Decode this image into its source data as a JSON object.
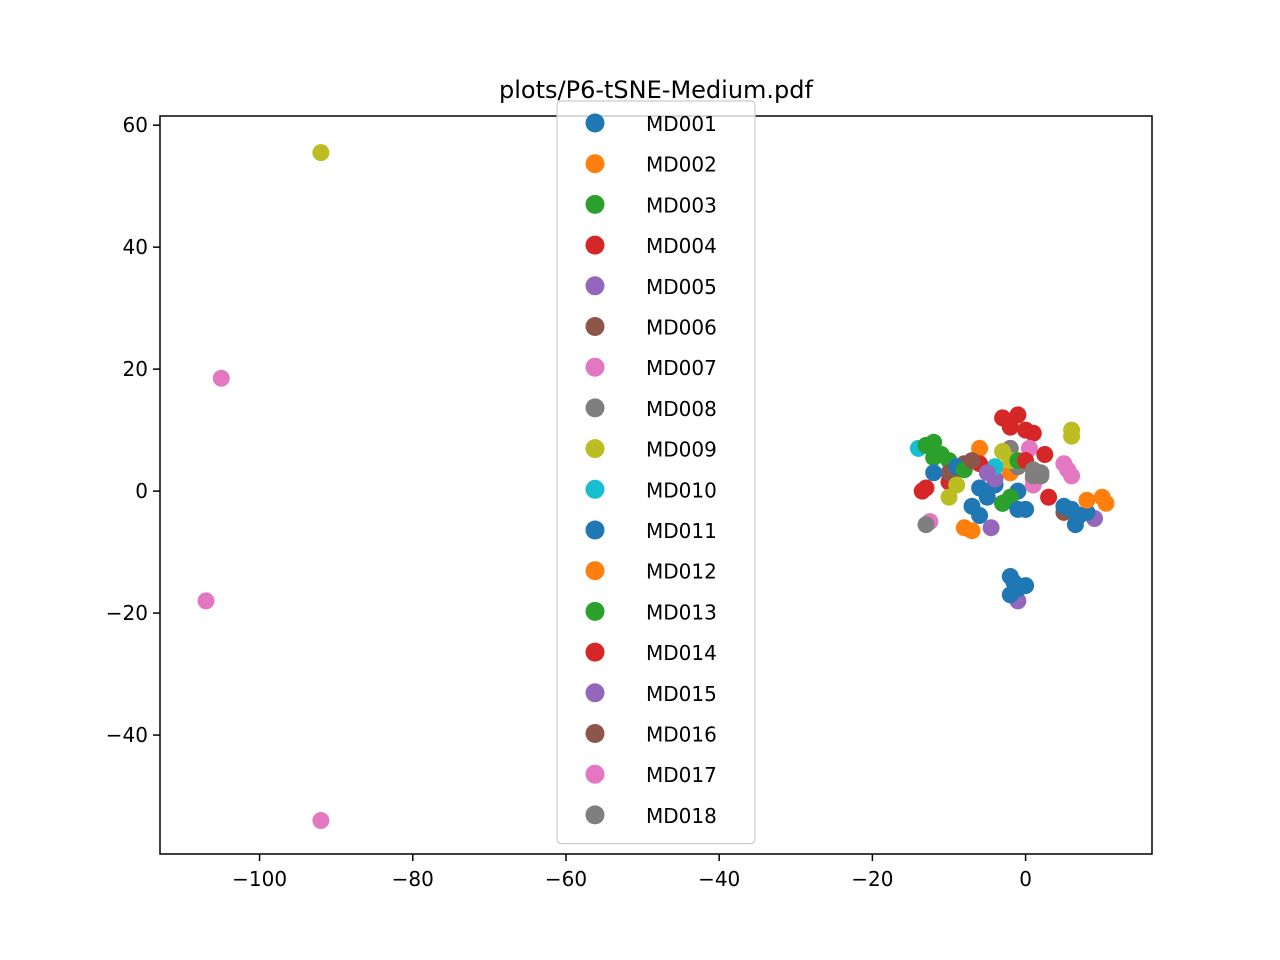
{
  "chart_data": {
    "type": "scatter",
    "title": "plots/P6-tSNE-Medium.pdf",
    "xlabel": "",
    "ylabel": "",
    "xlim": [
      -113,
      16.5
    ],
    "ylim": [
      -59.5,
      61.5
    ],
    "xticks": [
      -100,
      -80,
      -60,
      -40,
      -20,
      0
    ],
    "xtick_labels": [
      "−100",
      "−80",
      "−60",
      "−40",
      "−20",
      "0"
    ],
    "yticks": [
      -40,
      -20,
      0,
      20,
      40,
      60
    ],
    "ytick_labels": [
      "−40",
      "−20",
      "0",
      "20",
      "40",
      "60"
    ],
    "grid": false,
    "legend_position": "upper center",
    "series": [
      {
        "name": "MD001",
        "color": "#1f77b4",
        "points": [
          [
            -6,
            0.5
          ],
          [
            -5,
            -1
          ],
          [
            -4,
            1
          ],
          [
            -3,
            -2
          ],
          [
            -1,
            0
          ],
          [
            0,
            -3
          ],
          [
            -7,
            -2.5
          ],
          [
            -6,
            -4
          ]
        ]
      },
      {
        "name": "MD002",
        "color": "#ff7f0e",
        "points": [
          [
            -6,
            7
          ],
          [
            -2,
            3
          ],
          [
            -8,
            -6
          ],
          [
            -7,
            -6.5
          ],
          [
            1,
            2
          ]
        ]
      },
      {
        "name": "MD003",
        "color": "#2ca02c",
        "points": [
          [
            -12,
            8
          ],
          [
            -11,
            6
          ],
          [
            -10,
            5
          ],
          [
            -12,
            5.5
          ],
          [
            -3,
            -2
          ],
          [
            -2,
            -1
          ]
        ]
      },
      {
        "name": "MD004",
        "color": "#d62728",
        "points": [
          [
            -3,
            12
          ],
          [
            -1,
            12.5
          ],
          [
            0,
            10
          ],
          [
            1,
            9.5
          ],
          [
            -2,
            10.5
          ],
          [
            -9,
            3.5
          ],
          [
            -10,
            1.5
          ]
        ]
      },
      {
        "name": "MD005",
        "color": "#9467bd",
        "points": [
          [
            -4,
            2
          ],
          [
            -4.5,
            -6
          ],
          [
            9,
            -4.5
          ],
          [
            -1,
            -18
          ]
        ]
      },
      {
        "name": "MD006",
        "color": "#8c564b",
        "points": [
          [
            -8,
            4.5
          ],
          [
            -10,
            3
          ],
          [
            5,
            -3.5
          ]
        ]
      },
      {
        "name": "MD007",
        "color": "#e377c2",
        "points": [
          [
            -92,
            -54
          ],
          [
            0.5,
            7
          ],
          [
            1,
            1
          ],
          [
            -12.5,
            -5
          ]
        ]
      },
      {
        "name": "MD008",
        "color": "#7f7f7f",
        "points": [
          [
            -2,
            7
          ],
          [
            2,
            3
          ],
          [
            -1,
            4
          ],
          [
            1,
            2.5
          ],
          [
            -13,
            -5.5
          ]
        ]
      },
      {
        "name": "MD009",
        "color": "#bcbd22",
        "points": [
          [
            -92,
            55.5
          ],
          [
            6,
            10
          ],
          [
            6,
            9
          ],
          [
            -3,
            6.5
          ],
          [
            -2,
            5
          ],
          [
            -9,
            1
          ],
          [
            -10,
            -1
          ]
        ]
      },
      {
        "name": "MD010",
        "color": "#17becf",
        "points": [
          [
            -14,
            7
          ],
          [
            -4,
            4
          ]
        ]
      },
      {
        "name": "MD011",
        "color": "#1f77b4",
        "points": [
          [
            -2,
            -14
          ],
          [
            -1,
            -16
          ],
          [
            -2,
            -17
          ],
          [
            0,
            -15.5
          ],
          [
            -1.5,
            -15
          ],
          [
            5,
            -2.5
          ],
          [
            6,
            -3
          ],
          [
            7,
            -4
          ],
          [
            8,
            -3.5
          ],
          [
            6.5,
            -5.5
          ],
          [
            -12,
            3
          ],
          [
            -9,
            4
          ],
          [
            -1,
            -3
          ]
        ]
      },
      {
        "name": "MD012",
        "color": "#ff7f0e",
        "points": [
          [
            10,
            -1
          ],
          [
            10.5,
            -2
          ],
          [
            8,
            -1.5
          ]
        ]
      },
      {
        "name": "MD013",
        "color": "#2ca02c",
        "points": [
          [
            -13,
            7.5
          ],
          [
            -8,
            3.5
          ],
          [
            -1,
            5
          ]
        ]
      },
      {
        "name": "MD014",
        "color": "#d62728",
        "points": [
          [
            -13,
            0.5
          ],
          [
            -13.5,
            0
          ],
          [
            2.5,
            6
          ],
          [
            0,
            5
          ],
          [
            3,
            -1
          ],
          [
            -6,
            4.5
          ]
        ]
      },
      {
        "name": "MD015",
        "color": "#9467bd",
        "points": [
          [
            -5,
            3
          ]
        ]
      },
      {
        "name": "MD016",
        "color": "#8c564b",
        "points": [
          [
            -7,
            5
          ]
        ]
      },
      {
        "name": "MD017",
        "color": "#e377c2",
        "points": [
          [
            -105,
            18.5
          ],
          [
            -107,
            -18
          ],
          [
            5,
            4.5
          ],
          [
            6,
            2.5
          ],
          [
            5.5,
            3.5
          ]
        ]
      },
      {
        "name": "MD018",
        "color": "#7f7f7f",
        "points": [
          [
            1,
            3.5
          ],
          [
            2,
            2.5
          ]
        ]
      }
    ]
  }
}
